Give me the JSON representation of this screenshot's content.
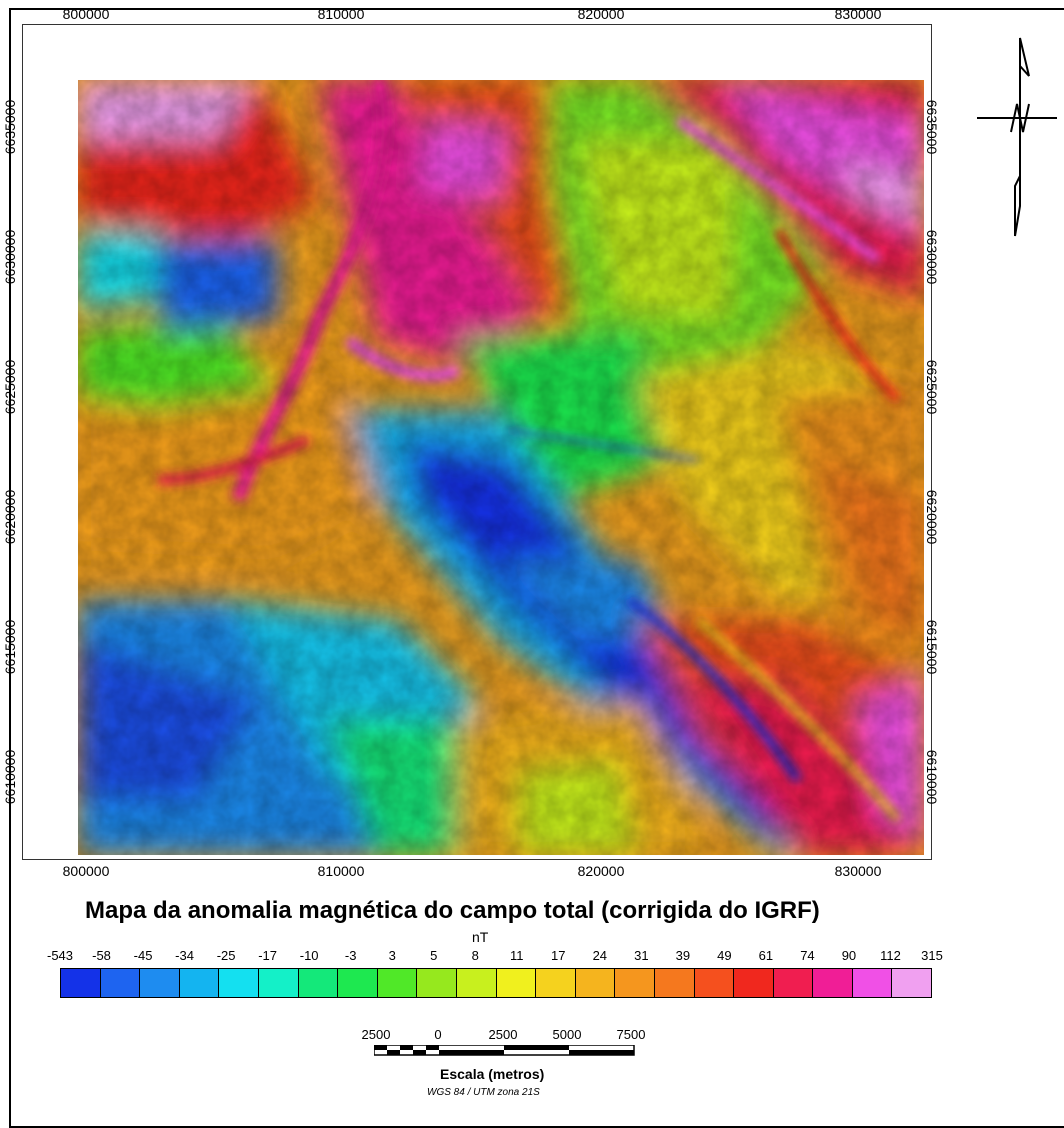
{
  "map": {
    "title": "Mapa da anomalia magnética do campo total (corrigida do IGRF)",
    "x_ticks": [
      "800000",
      "810000",
      "820000",
      "830000"
    ],
    "y_ticks": [
      "6635000",
      "6630000",
      "6625000",
      "6620000",
      "6615000",
      "6610000"
    ],
    "legend_unit": "nT",
    "legend_values": [
      "-543",
      "-58",
      "-45",
      "-34",
      "-25",
      "-17",
      "-10",
      "-3",
      "3",
      "5",
      "8",
      "11",
      "17",
      "24",
      "31",
      "39",
      "49",
      "61",
      "74",
      "90",
      "112",
      "315"
    ],
    "legend_colors": [
      "#1432e8",
      "#1e64f0",
      "#1e8cf0",
      "#14b4f0",
      "#14e0f0",
      "#14f0c8",
      "#14e87a",
      "#1ee850",
      "#50e828",
      "#96e81e",
      "#c8f01e",
      "#f0f01e",
      "#f5d21e",
      "#f5b41e",
      "#f5961e",
      "#f5781e",
      "#f5501e",
      "#f0281e",
      "#f01e50",
      "#f01e96",
      "#f050e6",
      "#f0a0f0"
    ],
    "scale": {
      "labels": [
        "2500",
        "0",
        "2500",
        "5000",
        "7500"
      ],
      "title": "Escala (metros)",
      "projection": "WGS 84 / UTM zona 21S"
    }
  }
}
